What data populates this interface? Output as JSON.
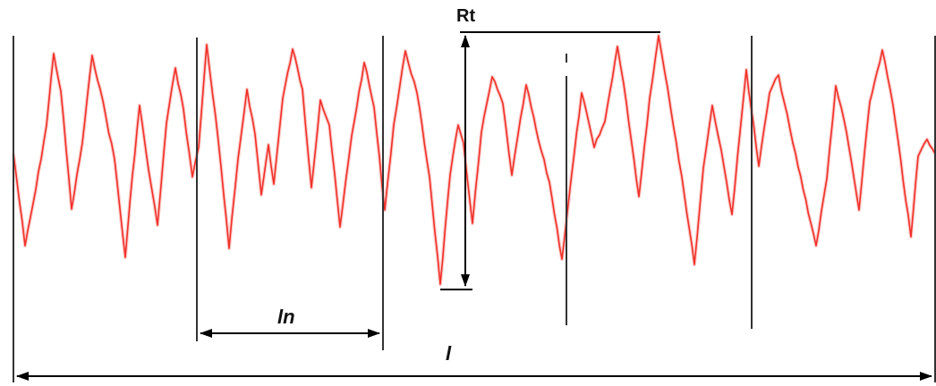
{
  "labels": {
    "rt": "Rt",
    "ln": "ln",
    "l": "l"
  },
  "colors": {
    "profile": "#f0302a",
    "profile_halo": "#f7a39a",
    "lines": "#000000",
    "dividers": "#3c3c3c",
    "background": "#ffffff"
  }
}
